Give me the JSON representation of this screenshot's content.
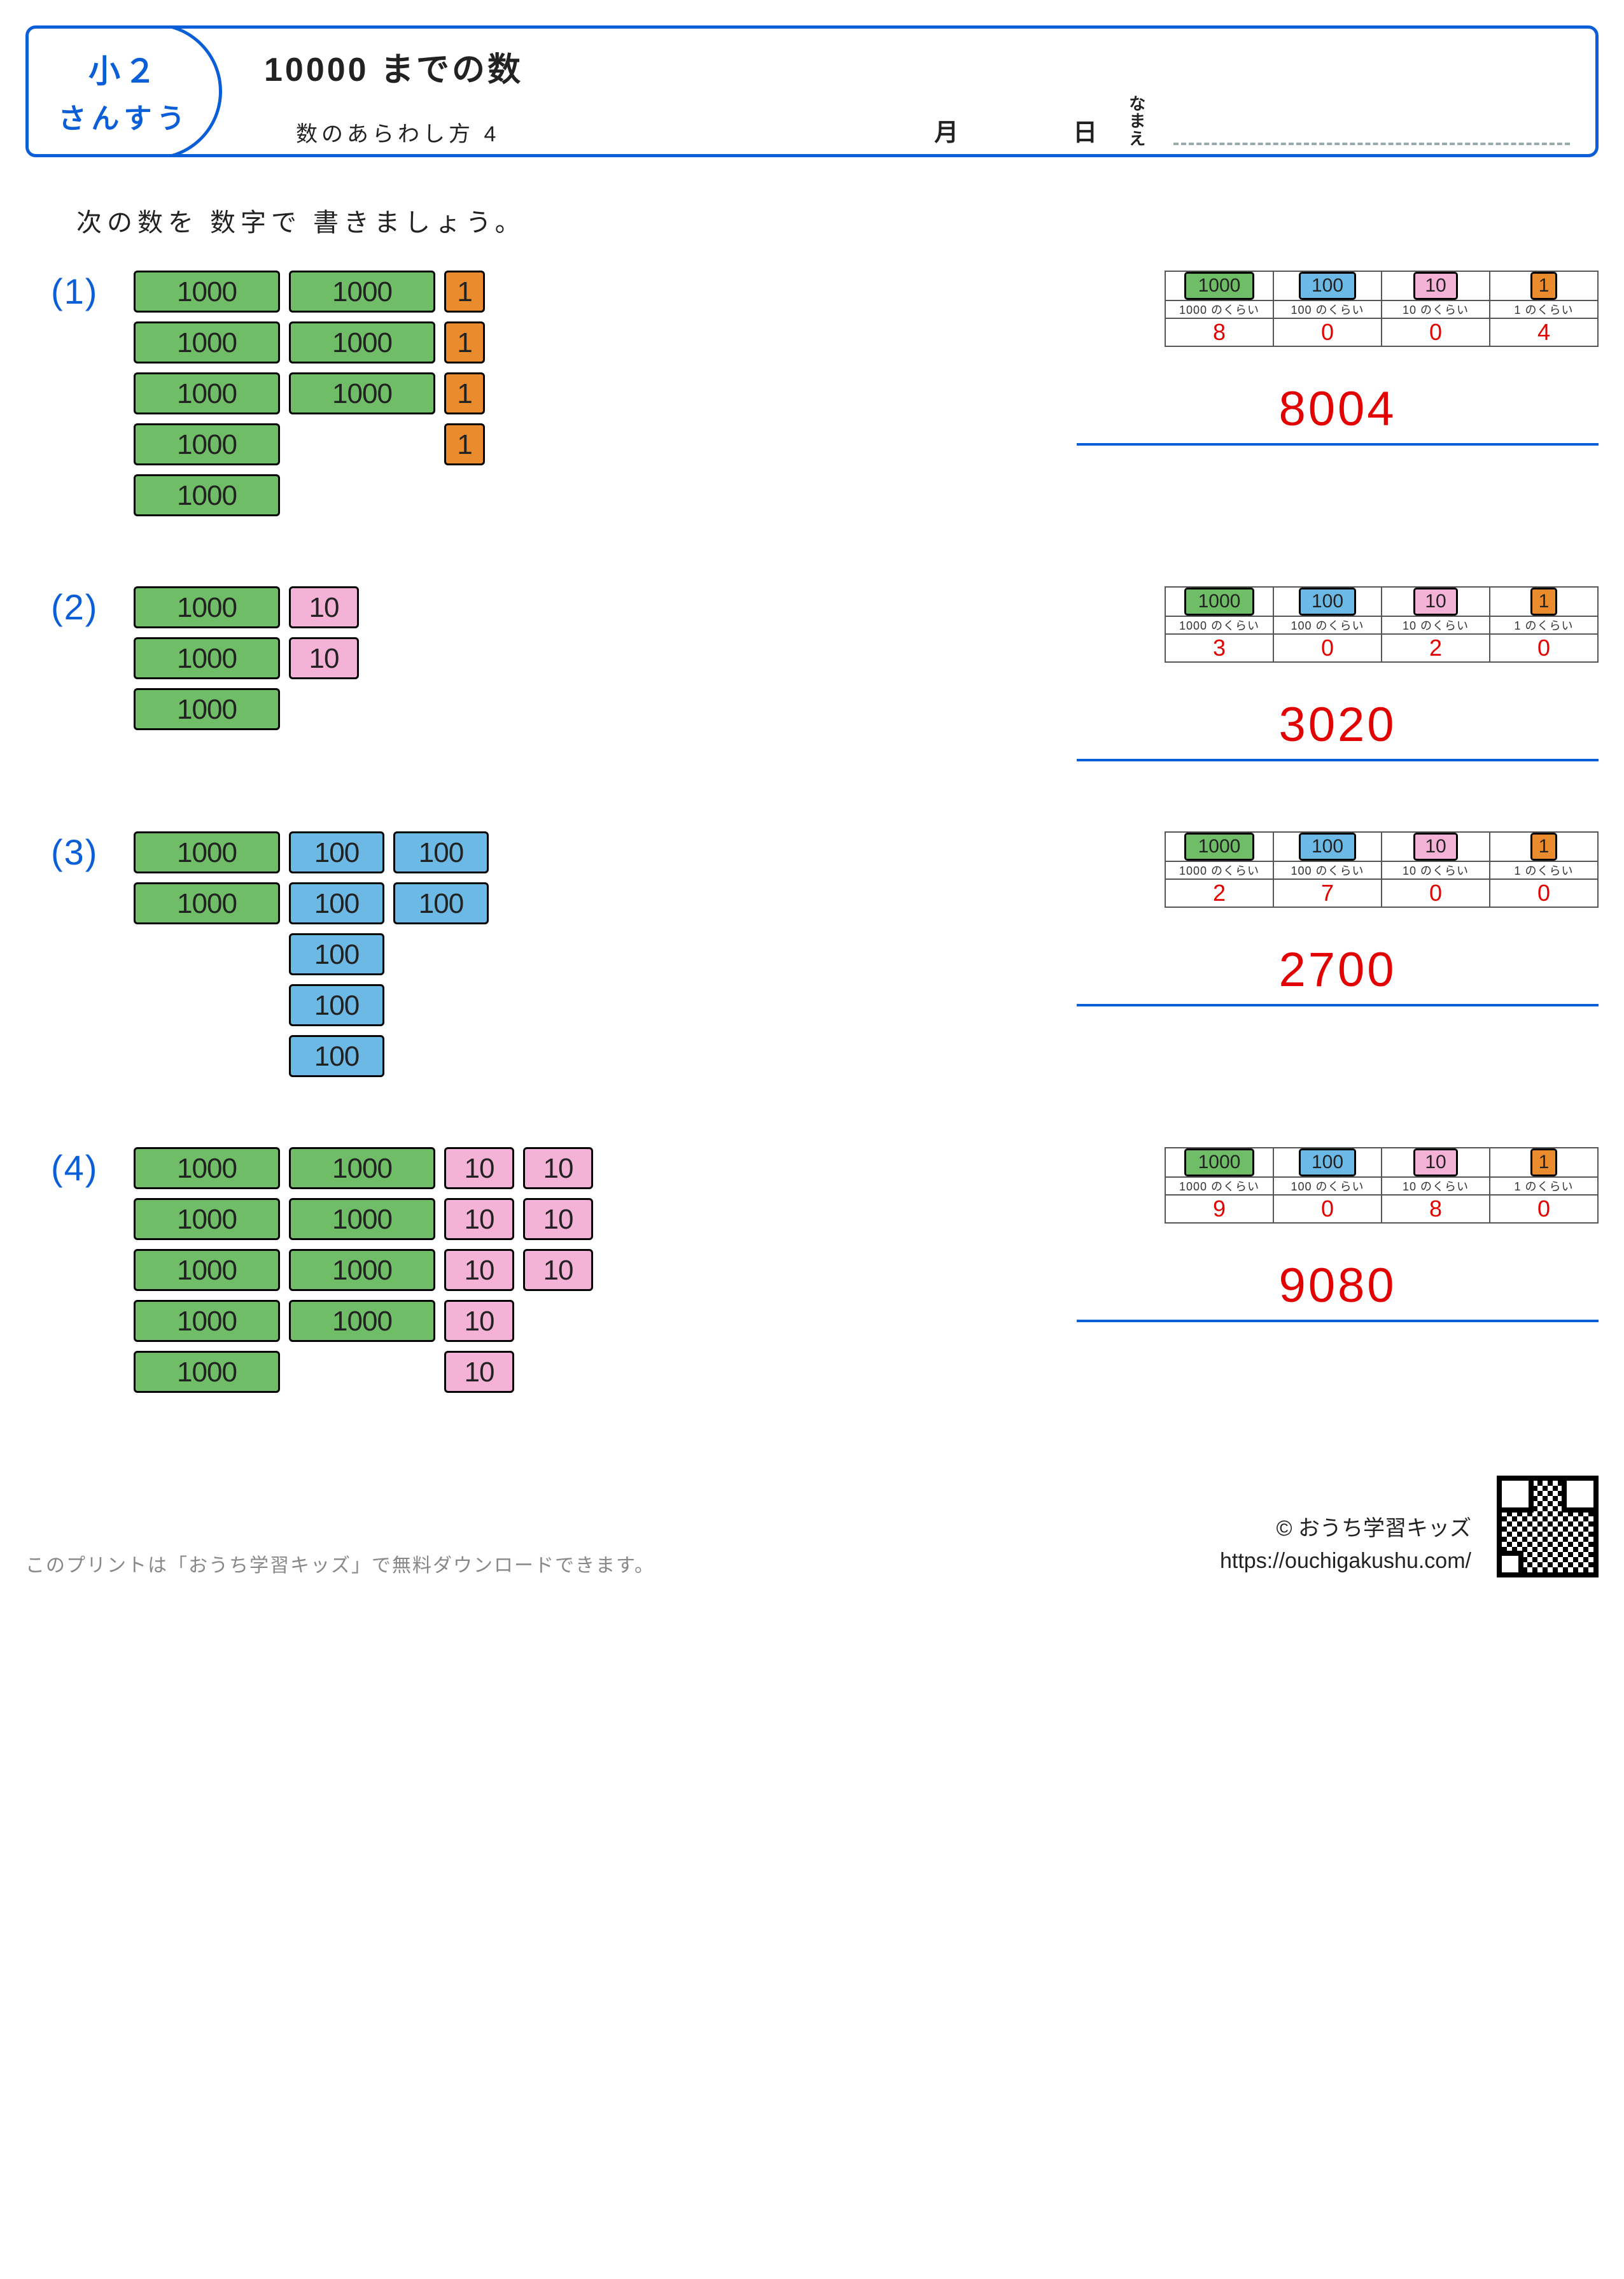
{
  "header": {
    "grade_line1": "小２",
    "grade_line2": "さんすう",
    "title": "10000 までの数",
    "subtitle": "数のあらわし方 4",
    "month_label": "月",
    "day_label": "日",
    "name_label_1": "な",
    "name_label_2": "ま",
    "name_label_3": "え"
  },
  "instruction": "次の数を 数字で 書きましょう。",
  "place_labels": {
    "h1000": "1000 のくらい",
    "h100": "100 のくらい",
    "h10": "10 のくらい",
    "h1": "1 のくらい",
    "chip1000": "1000",
    "chip100": "100",
    "chip10": "10",
    "chip1": "1"
  },
  "tile_text": {
    "t1000": "1000",
    "t100": "100",
    "t10": "10",
    "t1": "1"
  },
  "problems": [
    {
      "num_label": "(1)",
      "counts": {
        "thousands": 8,
        "hundreds": 0,
        "tens": 0,
        "ones": 4
      },
      "layout_thousands_cols": [
        5,
        3
      ],
      "layout_ones_cols": [
        4
      ],
      "place_values": [
        "8",
        "0",
        "0",
        "4"
      ],
      "answer": "8004"
    },
    {
      "num_label": "(2)",
      "counts": {
        "thousands": 3,
        "hundreds": 0,
        "tens": 2,
        "ones": 0
      },
      "layout_thousands_cols": [
        3
      ],
      "layout_tens_cols": [
        2
      ],
      "place_values": [
        "3",
        "0",
        "2",
        "0"
      ],
      "answer": "3020"
    },
    {
      "num_label": "(3)",
      "counts": {
        "thousands": 2,
        "hundreds": 7,
        "tens": 0,
        "ones": 0
      },
      "layout_thousands_cols": [
        2
      ],
      "layout_hundreds_cols": [
        5,
        2
      ],
      "place_values": [
        "2",
        "7",
        "0",
        "0"
      ],
      "answer": "2700"
    },
    {
      "num_label": "(4)",
      "counts": {
        "thousands": 9,
        "hundreds": 0,
        "tens": 8,
        "ones": 0
      },
      "layout_thousands_cols": [
        5,
        4
      ],
      "layout_tens_cols": [
        5,
        3
      ],
      "place_values": [
        "9",
        "0",
        "8",
        "0"
      ],
      "answer": "9080"
    }
  ],
  "footer": {
    "note": "このプリントは「おうち学習キッズ」で無料ダウンロードできます。",
    "copyright": "© おうち学習キッズ",
    "url": "https://ouchigakushu.com/"
  },
  "colors": {
    "blue": "#0a5ed8",
    "red": "#e30000",
    "tile1000": "#70bd68",
    "tile100": "#6cb9e6",
    "tile10": "#f4b3d6",
    "tile1": "#ea8b2e"
  }
}
